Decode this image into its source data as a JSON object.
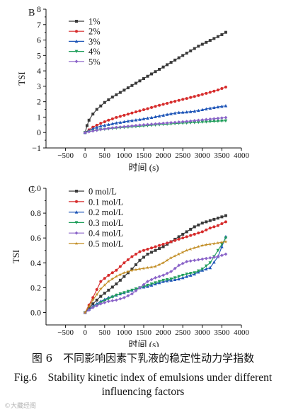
{
  "caption": {
    "chinese": "图 6　不同影响因素下乳液的稳定性动力学指数",
    "english_line1": "Fig.6　Stability kinetic index of emulsions under different",
    "english_line2": "influencing factors"
  },
  "watermark": "©大藏经阁",
  "chart_data": [
    {
      "type": "line",
      "panel_label": "B",
      "xlabel": "时间 (s)",
      "ylabel": "TSI",
      "xlim": [
        -1000,
        4000
      ],
      "ylim": [
        -1,
        8
      ],
      "xticks": [
        -500,
        0,
        500,
        1000,
        1500,
        2000,
        2500,
        3000,
        3500,
        4000
      ],
      "yticks": [
        -1,
        0,
        1,
        2,
        3,
        4,
        5,
        6,
        7,
        8
      ],
      "legend_position": "top-left",
      "grid": false,
      "x_end": 3600,
      "series": [
        {
          "name": "1%",
          "color": "#3a3a3a",
          "marker": "square",
          "points": [
            [
              0,
              0
            ],
            [
              50,
              0.45
            ],
            [
              100,
              0.8
            ],
            [
              200,
              1.2
            ],
            [
              300,
              1.5
            ],
            [
              500,
              1.95
            ],
            [
              700,
              2.3
            ],
            [
              900,
              2.6
            ],
            [
              1100,
              2.9
            ],
            [
              1300,
              3.2
            ],
            [
              1500,
              3.5
            ],
            [
              1700,
              3.8
            ],
            [
              1900,
              4.1
            ],
            [
              2100,
              4.4
            ],
            [
              2300,
              4.7
            ],
            [
              2500,
              5.0
            ],
            [
              2700,
              5.3
            ],
            [
              2900,
              5.6
            ],
            [
              3100,
              5.85
            ],
            [
              3300,
              6.1
            ],
            [
              3500,
              6.35
            ],
            [
              3600,
              6.5
            ]
          ]
        },
        {
          "name": "2%",
          "color": "#d62b2b",
          "marker": "circle",
          "points": [
            [
              0,
              0
            ],
            [
              200,
              0.35
            ],
            [
              400,
              0.6
            ],
            [
              600,
              0.8
            ],
            [
              800,
              0.98
            ],
            [
              1000,
              1.12
            ],
            [
              1200,
              1.27
            ],
            [
              1400,
              1.41
            ],
            [
              1600,
              1.55
            ],
            [
              1800,
              1.7
            ],
            [
              2000,
              1.83
            ],
            [
              2200,
              1.96
            ],
            [
              2400,
              2.09
            ],
            [
              2600,
              2.21
            ],
            [
              2800,
              2.34
            ],
            [
              3000,
              2.47
            ],
            [
              3200,
              2.61
            ],
            [
              3400,
              2.76
            ],
            [
              3600,
              2.95
            ]
          ]
        },
        {
          "name": "3%",
          "color": "#1f56b8",
          "marker": "triangle-up",
          "points": [
            [
              0,
              0
            ],
            [
              200,
              0.25
            ],
            [
              400,
              0.42
            ],
            [
              600,
              0.52
            ],
            [
              800,
              0.62
            ],
            [
              1000,
              0.7
            ],
            [
              1200,
              0.78
            ],
            [
              1400,
              0.85
            ],
            [
              1600,
              0.93
            ],
            [
              1800,
              1.02
            ],
            [
              2000,
              1.12
            ],
            [
              2200,
              1.22
            ],
            [
              2400,
              1.3
            ],
            [
              2600,
              1.33
            ],
            [
              2800,
              1.38
            ],
            [
              3000,
              1.48
            ],
            [
              3200,
              1.58
            ],
            [
              3400,
              1.66
            ],
            [
              3600,
              1.73
            ]
          ]
        },
        {
          "name": "4%",
          "color": "#1f9e5a",
          "marker": "triangle-down",
          "points": [
            [
              0,
              0
            ],
            [
              200,
              0.1
            ],
            [
              400,
              0.18
            ],
            [
              600,
              0.24
            ],
            [
              800,
              0.29
            ],
            [
              1000,
              0.33
            ],
            [
              1200,
              0.37
            ],
            [
              1400,
              0.41
            ],
            [
              1600,
              0.45
            ],
            [
              1800,
              0.49
            ],
            [
              2000,
              0.53
            ],
            [
              2200,
              0.56
            ],
            [
              2400,
              0.6
            ],
            [
              2600,
              0.62
            ],
            [
              2800,
              0.65
            ],
            [
              3000,
              0.68
            ],
            [
              3200,
              0.71
            ],
            [
              3400,
              0.74
            ],
            [
              3600,
              0.76
            ]
          ]
        },
        {
          "name": "5%",
          "color": "#8a63c8",
          "marker": "diamond",
          "points": [
            [
              0,
              0
            ],
            [
              200,
              0.1
            ],
            [
              400,
              0.2
            ],
            [
              600,
              0.27
            ],
            [
              800,
              0.33
            ],
            [
              1000,
              0.38
            ],
            [
              1200,
              0.43
            ],
            [
              1400,
              0.48
            ],
            [
              1600,
              0.52
            ],
            [
              1800,
              0.56
            ],
            [
              2000,
              0.6
            ],
            [
              2200,
              0.64
            ],
            [
              2400,
              0.68
            ],
            [
              2600,
              0.72
            ],
            [
              2800,
              0.77
            ],
            [
              3000,
              0.82
            ],
            [
              3200,
              0.87
            ],
            [
              3400,
              0.92
            ],
            [
              3600,
              0.97
            ]
          ]
        }
      ]
    },
    {
      "type": "line",
      "panel_label": "C",
      "xlabel": "时间 (s)",
      "ylabel": "TSI",
      "xlim": [
        -1000,
        4000
      ],
      "ylim": [
        -0.1,
        1.0
      ],
      "xticks": [
        -500,
        0,
        500,
        1000,
        1500,
        2000,
        2500,
        3000,
        3500,
        4000
      ],
      "yticks": [
        0.0,
        0.2,
        0.4,
        0.6,
        0.8,
        1.0
      ],
      "legend_position": "top-left",
      "grid": false,
      "x_end": 3600,
      "series": [
        {
          "name": "0 mol/L",
          "color": "#3a3a3a",
          "marker": "square",
          "points": [
            [
              0,
              0
            ],
            [
              200,
              0.07
            ],
            [
              400,
              0.13
            ],
            [
              600,
              0.18
            ],
            [
              800,
              0.23
            ],
            [
              1000,
              0.29
            ],
            [
              1200,
              0.35
            ],
            [
              1400,
              0.42
            ],
            [
              1600,
              0.47
            ],
            [
              1800,
              0.5
            ],
            [
              2000,
              0.53
            ],
            [
              2200,
              0.57
            ],
            [
              2400,
              0.61
            ],
            [
              2600,
              0.65
            ],
            [
              2800,
              0.69
            ],
            [
              3000,
              0.72
            ],
            [
              3200,
              0.74
            ],
            [
              3400,
              0.76
            ],
            [
              3600,
              0.78
            ]
          ]
        },
        {
          "name": "0.1 mol/L",
          "color": "#d62b2b",
          "marker": "circle",
          "points": [
            [
              0,
              0
            ],
            [
              200,
              0.12
            ],
            [
              400,
              0.25
            ],
            [
              600,
              0.3
            ],
            [
              800,
              0.34
            ],
            [
              1000,
              0.4
            ],
            [
              1200,
              0.45
            ],
            [
              1400,
              0.49
            ],
            [
              1600,
              0.51
            ],
            [
              1800,
              0.53
            ],
            [
              2000,
              0.55
            ],
            [
              2200,
              0.57
            ],
            [
              2400,
              0.59
            ],
            [
              2600,
              0.61
            ],
            [
              2800,
              0.63
            ],
            [
              3000,
              0.65
            ],
            [
              3200,
              0.68
            ],
            [
              3400,
              0.7
            ],
            [
              3600,
              0.73
            ]
          ]
        },
        {
          "name": "0.2 mol/L",
          "color": "#1f56b8",
          "marker": "triangle-up",
          "points": [
            [
              0,
              0
            ],
            [
              200,
              0.05
            ],
            [
              400,
              0.09
            ],
            [
              600,
              0.12
            ],
            [
              800,
              0.14
            ],
            [
              1000,
              0.16
            ],
            [
              1200,
              0.18
            ],
            [
              1400,
              0.2
            ],
            [
              1600,
              0.21
            ],
            [
              1800,
              0.23
            ],
            [
              2000,
              0.25
            ],
            [
              2200,
              0.26
            ],
            [
              2400,
              0.27
            ],
            [
              2600,
              0.29
            ],
            [
              2800,
              0.31
            ],
            [
              3000,
              0.34
            ],
            [
              3200,
              0.36
            ],
            [
              3400,
              0.45
            ],
            [
              3500,
              0.53
            ],
            [
              3600,
              0.61
            ]
          ]
        },
        {
          "name": "0.3 mol/L",
          "color": "#1f9e5a",
          "marker": "triangle-down",
          "points": [
            [
              0,
              0
            ],
            [
              200,
              0.04
            ],
            [
              400,
              0.08
            ],
            [
              600,
              0.11
            ],
            [
              800,
              0.14
            ],
            [
              1000,
              0.16
            ],
            [
              1200,
              0.18
            ],
            [
              1400,
              0.2
            ],
            [
              1600,
              0.22
            ],
            [
              1800,
              0.24
            ],
            [
              2000,
              0.26
            ],
            [
              2200,
              0.27
            ],
            [
              2400,
              0.29
            ],
            [
              2600,
              0.31
            ],
            [
              2800,
              0.32
            ],
            [
              3000,
              0.35
            ],
            [
              3200,
              0.4
            ],
            [
              3400,
              0.5
            ],
            [
              3600,
              0.6
            ]
          ]
        },
        {
          "name": "0.4 mol/L",
          "color": "#8a63c8",
          "marker": "diamond",
          "points": [
            [
              0,
              0
            ],
            [
              200,
              0.04
            ],
            [
              400,
              0.07
            ],
            [
              600,
              0.09
            ],
            [
              800,
              0.1
            ],
            [
              1000,
              0.12
            ],
            [
              1200,
              0.15
            ],
            [
              1400,
              0.2
            ],
            [
              1600,
              0.25
            ],
            [
              1800,
              0.28
            ],
            [
              2000,
              0.3
            ],
            [
              2200,
              0.33
            ],
            [
              2400,
              0.38
            ],
            [
              2600,
              0.41
            ],
            [
              2800,
              0.42
            ],
            [
              3000,
              0.43
            ],
            [
              3200,
              0.44
            ],
            [
              3400,
              0.45
            ],
            [
              3600,
              0.47
            ]
          ]
        },
        {
          "name": "0.5 mol/L",
          "color": "#c08a1e",
          "marker": "star",
          "points": [
            [
              0,
              0
            ],
            [
              200,
              0.1
            ],
            [
              400,
              0.19
            ],
            [
              600,
              0.25
            ],
            [
              800,
              0.29
            ],
            [
              1000,
              0.32
            ],
            [
              1200,
              0.34
            ],
            [
              1400,
              0.35
            ],
            [
              1600,
              0.36
            ],
            [
              1800,
              0.37
            ],
            [
              2000,
              0.4
            ],
            [
              2200,
              0.44
            ],
            [
              2400,
              0.47
            ],
            [
              2600,
              0.5
            ],
            [
              2800,
              0.52
            ],
            [
              3000,
              0.54
            ],
            [
              3200,
              0.55
            ],
            [
              3400,
              0.56
            ],
            [
              3600,
              0.57
            ]
          ]
        }
      ]
    }
  ]
}
